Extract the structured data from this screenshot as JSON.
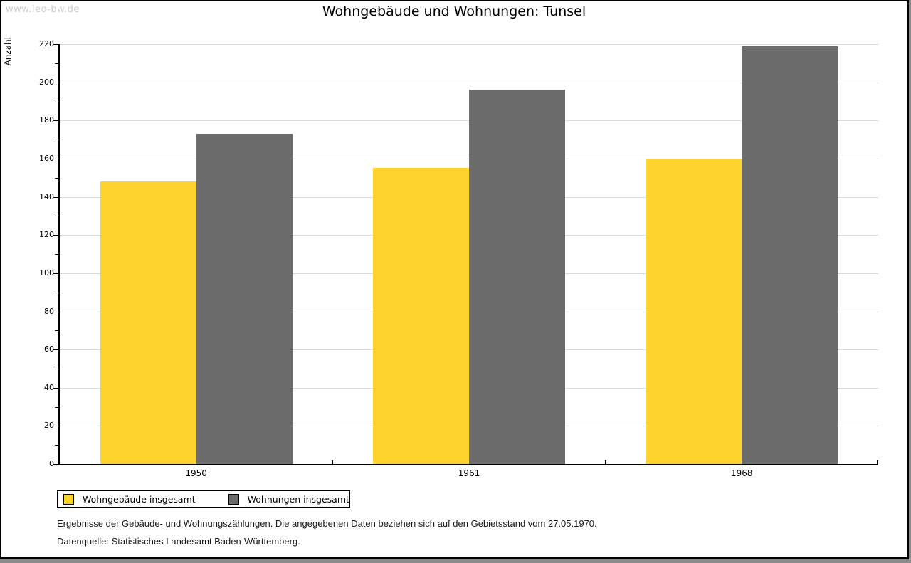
{
  "watermark": "www.leo-bw.de",
  "chart_data": {
    "type": "bar",
    "title": "Wohngebäude und Wohnungen: Tunsel",
    "ylabel": "Anzahl",
    "xlabel": "",
    "categories": [
      "1950",
      "1961",
      "1968"
    ],
    "series": [
      {
        "name": "Wohngebäude insgesamt",
        "color": "#FCD42D",
        "values": [
          148,
          155,
          160
        ]
      },
      {
        "name": "Wohnungen insgesamt",
        "color": "#6C6C6C",
        "values": [
          173,
          196,
          219
        ]
      }
    ],
    "ylim": [
      0,
      220
    ],
    "ytick_step": 20,
    "yminor_step": 10,
    "grid": true,
    "legend_position": "bottom-left"
  },
  "footnotes": [
    "Ergebnisse der Gebäude- und Wohnungszählungen. Die angegebenen Daten beziehen sich auf den Gebietsstand vom 27.05.1970.",
    "Datenquelle: Statistisches Landesamt Baden-Württemberg."
  ],
  "colors": {
    "gridline": "#DADADA",
    "axis": "#000000",
    "watermark": "#CCCCCC",
    "page_border": "#000000",
    "outer_shadow": "#8A8A8A"
  }
}
